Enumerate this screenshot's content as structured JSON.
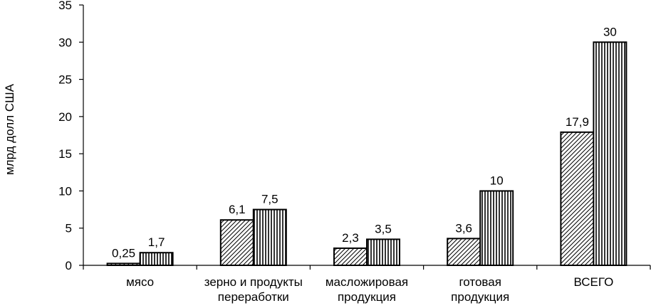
{
  "chart_data": {
    "type": "bar",
    "title": "",
    "xlabel": "",
    "ylabel": "млрд долл США",
    "ylim": [
      0,
      35
    ],
    "yticks": [
      0,
      5,
      10,
      15,
      20,
      25,
      30,
      35
    ],
    "grid": false,
    "legend": "none",
    "categories": [
      [
        "мясо"
      ],
      [
        "зерно и продукты",
        "переработки"
      ],
      [
        "масложировая",
        "продукция"
      ],
      [
        "готовая",
        "продукция"
      ],
      [
        "ВСЕГО"
      ]
    ],
    "series": [
      {
        "values": [
          0.25,
          6.1,
          2.3,
          3.6,
          17.9
        ],
        "labels": [
          "0,25",
          "6,1",
          "2,3",
          "3,6",
          "17,9"
        ],
        "pattern": "diagonal-hatch"
      },
      {
        "values": [
          1.7,
          7.5,
          3.5,
          10,
          30
        ],
        "labels": [
          "1,7",
          "7,5",
          "3,5",
          "10",
          "30"
        ],
        "pattern": "vertical-stripes"
      }
    ],
    "colors": {
      "stroke": "#000000",
      "background": "#ffffff"
    }
  }
}
